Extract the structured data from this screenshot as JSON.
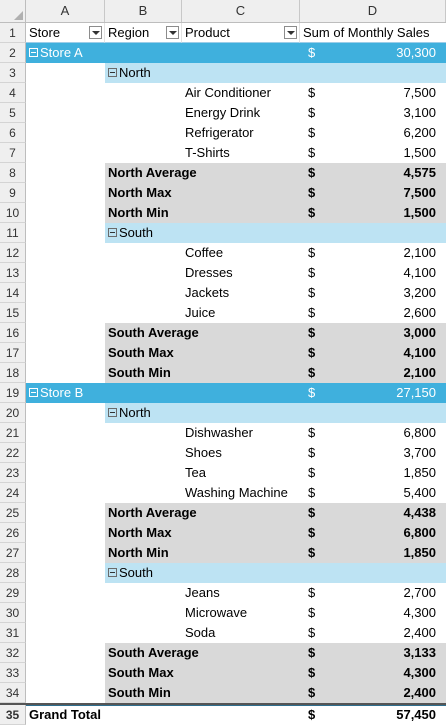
{
  "columns": [
    "A",
    "B",
    "C",
    "D"
  ],
  "headers": {
    "store": "Store",
    "region": "Region",
    "product": "Product",
    "sales": "Sum of Monthly Sales"
  },
  "currency": "$",
  "rows": [
    {
      "n": "2",
      "kind": "store",
      "a": "Store A",
      "d": "30,300"
    },
    {
      "n": "3",
      "kind": "region",
      "b": "North"
    },
    {
      "n": "4",
      "kind": "item",
      "c": "Air Conditioner",
      "d": "7,500"
    },
    {
      "n": "5",
      "kind": "item",
      "c": "Energy Drink",
      "d": "3,100"
    },
    {
      "n": "6",
      "kind": "item",
      "c": "Refrigerator",
      "d": "6,200"
    },
    {
      "n": "7",
      "kind": "item",
      "c": "T-Shirts",
      "d": "1,500"
    },
    {
      "n": "8",
      "kind": "sub",
      "b": "North Average",
      "d": "4,575"
    },
    {
      "n": "9",
      "kind": "sub",
      "b": "North Max",
      "d": "7,500"
    },
    {
      "n": "10",
      "kind": "sub",
      "b": "North Min",
      "d": "1,500"
    },
    {
      "n": "11",
      "kind": "region",
      "b": "South"
    },
    {
      "n": "12",
      "kind": "item",
      "c": "Coffee",
      "d": "2,100"
    },
    {
      "n": "13",
      "kind": "item",
      "c": "Dresses",
      "d": "4,100"
    },
    {
      "n": "14",
      "kind": "item",
      "c": "Jackets",
      "d": "3,200"
    },
    {
      "n": "15",
      "kind": "item",
      "c": "Juice",
      "d": "2,600"
    },
    {
      "n": "16",
      "kind": "sub",
      "b": "South Average",
      "d": "3,000"
    },
    {
      "n": "17",
      "kind": "sub",
      "b": "South Max",
      "d": "4,100"
    },
    {
      "n": "18",
      "kind": "sub",
      "b": "South Min",
      "d": "2,100"
    },
    {
      "n": "19",
      "kind": "store",
      "a": "Store B",
      "d": "27,150"
    },
    {
      "n": "20",
      "kind": "region",
      "b": "North"
    },
    {
      "n": "21",
      "kind": "item",
      "c": "Dishwasher",
      "d": "6,800"
    },
    {
      "n": "22",
      "kind": "item",
      "c": "Shoes",
      "d": "3,700"
    },
    {
      "n": "23",
      "kind": "item",
      "c": "Tea",
      "d": "1,850"
    },
    {
      "n": "24",
      "kind": "item",
      "c": "Washing Machine",
      "d": "5,400"
    },
    {
      "n": "25",
      "kind": "sub",
      "b": "North Average",
      "d": "4,438"
    },
    {
      "n": "26",
      "kind": "sub",
      "b": "North Max",
      "d": "6,800"
    },
    {
      "n": "27",
      "kind": "sub",
      "b": "North Min",
      "d": "1,850"
    },
    {
      "n": "28",
      "kind": "region",
      "b": "South"
    },
    {
      "n": "29",
      "kind": "item",
      "c": "Jeans",
      "d": "2,700"
    },
    {
      "n": "30",
      "kind": "item",
      "c": "Microwave",
      "d": "4,300"
    },
    {
      "n": "31",
      "kind": "item",
      "c": "Soda",
      "d": "2,400"
    },
    {
      "n": "32",
      "kind": "sub",
      "b": "South Average",
      "d": "3,133"
    },
    {
      "n": "33",
      "kind": "sub",
      "b": "South Max",
      "d": "4,300"
    },
    {
      "n": "34",
      "kind": "sub",
      "b": "South Min",
      "d": "2,400"
    },
    {
      "n": "35",
      "kind": "grand",
      "a": "Grand Total",
      "d": "57,450"
    }
  ],
  "header_row_number": "1",
  "colors": {
    "store_band": "#3fb0dd",
    "region_band": "#bde3f3",
    "subtotal_band": "#d9d9d9",
    "header_bg": "#efefef"
  }
}
